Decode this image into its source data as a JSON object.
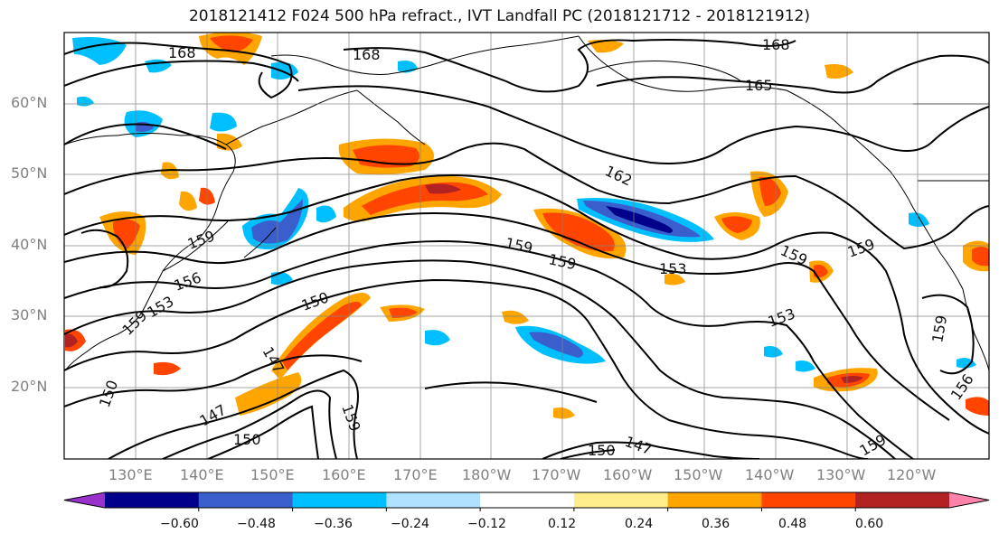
{
  "title": "2018121412 F024 500 hPa refract., IVT Landfall PC (2018121712 - 2018121912)",
  "lat_labels": [
    "60°N",
    "50°N",
    "40°N",
    "30°N",
    "20°N"
  ],
  "lon_labels": [
    "130°E",
    "140°E",
    "150°E",
    "160°E",
    "170°E",
    "180°W",
    "170°W",
    "160°W",
    "150°W",
    "140°W",
    "130°W",
    "120°W"
  ],
  "contour_labels": [
    "168",
    "168",
    "168",
    "165",
    "162",
    "159",
    "159",
    "159",
    "159",
    "159",
    "156",
    "153",
    "153",
    "153",
    "150",
    "150",
    "150",
    "150",
    "147",
    "147",
    "147",
    "159",
    "156",
    "159",
    "159",
    "159"
  ],
  "colorbar": {
    "ticks": [
      "−0.60",
      "−0.48",
      "−0.36",
      "−0.24",
      "−0.12",
      "0.12",
      "0.24",
      "0.36",
      "0.48",
      "0.60"
    ],
    "colors": [
      "#9932cc",
      "#00008b",
      "#3a5fcd",
      "#00bfff",
      "#b0e2ff",
      "#ffffff",
      "#ffec8b",
      "#ffa500",
      "#ff4500",
      "#b22222",
      "#ff82ab"
    ]
  }
}
